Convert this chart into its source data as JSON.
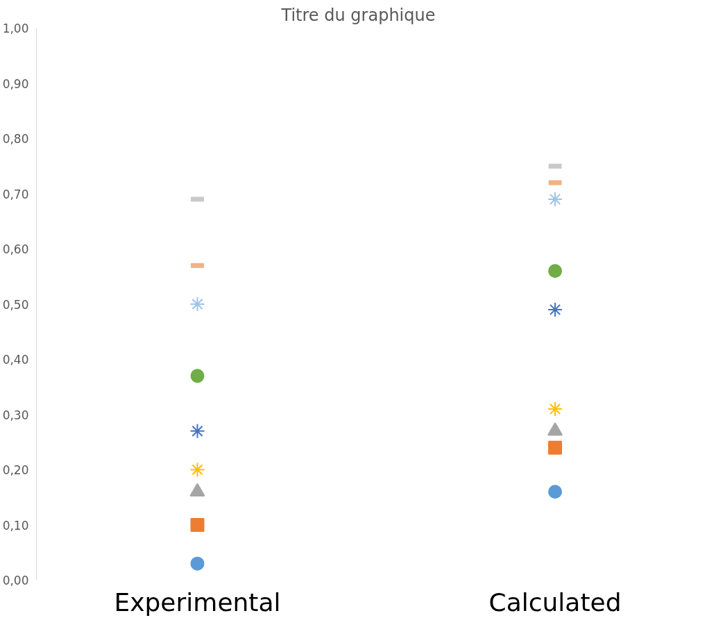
{
  "chart_data": {
    "type": "scatter",
    "title": "Titre du graphique",
    "categories": [
      "Experimental",
      "Calculated"
    ],
    "ylim": [
      0,
      1
    ],
    "yticks": [
      {
        "value": 0,
        "label": "0,00"
      },
      {
        "value": 0.1,
        "label": "0,10"
      },
      {
        "value": 0.2,
        "label": "0,20"
      },
      {
        "value": 0.3,
        "label": "0,30"
      },
      {
        "value": 0.4,
        "label": "0,40"
      },
      {
        "value": 0.5,
        "label": "0,50"
      },
      {
        "value": 0.6,
        "label": "0,60"
      },
      {
        "value": 0.7,
        "label": "0,70"
      },
      {
        "value": 0.8,
        "label": "0,80"
      },
      {
        "value": 0.9,
        "label": "0,90"
      },
      {
        "value": 1,
        "label": "1,00"
      }
    ],
    "grid": false,
    "series": [
      {
        "color": "#5b9bd5",
        "marker": "circle",
        "values": [
          0.03,
          0.16
        ]
      },
      {
        "color": "#ed7d31",
        "marker": "square",
        "values": [
          0.1,
          0.24
        ]
      },
      {
        "color": "#a5a5a5",
        "marker": "triangle",
        "values": [
          0.16,
          0.27
        ]
      },
      {
        "color": "#ffc000",
        "marker": "cross",
        "values": [
          0.2,
          0.31
        ]
      },
      {
        "color": "#4472c4",
        "marker": "cross",
        "values": [
          0.27,
          0.49
        ]
      },
      {
        "color": "#70ad47",
        "marker": "circle",
        "values": [
          0.37,
          0.56
        ]
      },
      {
        "color": "#9dc3e6",
        "marker": "cross",
        "values": [
          0.5,
          0.69
        ]
      },
      {
        "color": "#f4b183",
        "values": [
          0.57,
          0.72
        ]
      },
      {
        "color": "#c9c9c9",
        "values": [
          0.69,
          0.75
        ]
      }
    ]
  }
}
